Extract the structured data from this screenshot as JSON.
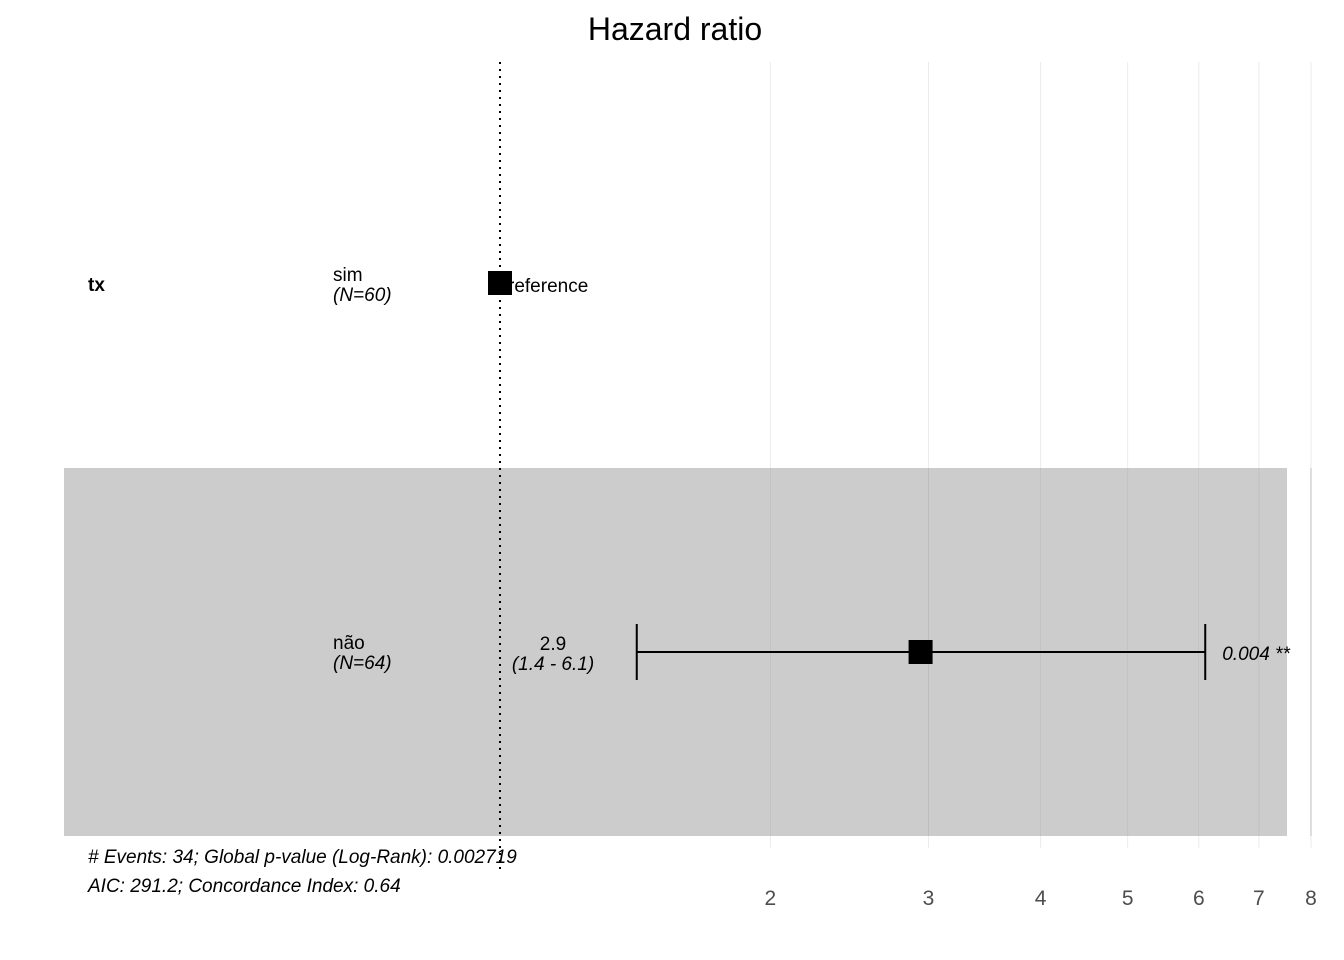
{
  "chart_data": {
    "type": "forest",
    "title": "Hazard ratio",
    "scale": "log",
    "xlim": [
      0.9,
      8.2
    ],
    "reference_value": 1,
    "x_ticks": [
      2,
      3,
      4,
      5,
      6,
      7,
      8
    ],
    "variables": [
      {
        "name": "tx",
        "levels": [
          {
            "level": "sim",
            "n_label": "(N=60)",
            "reference": true,
            "reference_label": "reference"
          },
          {
            "level": "não",
            "n_label": "(N=64)",
            "reference": false,
            "hr": 2.94,
            "ci_low": 1.42,
            "ci_high": 6.1,
            "hr_label": "2.9",
            "ci_label": "(1.4 - 6.1)",
            "p_label": "0.004 **"
          }
        ]
      }
    ],
    "footer": [
      "# Events: 34; Global p-value (Log-Rank): 0.002719",
      "AIC: 291.2; Concordance Index: 0.64"
    ]
  }
}
